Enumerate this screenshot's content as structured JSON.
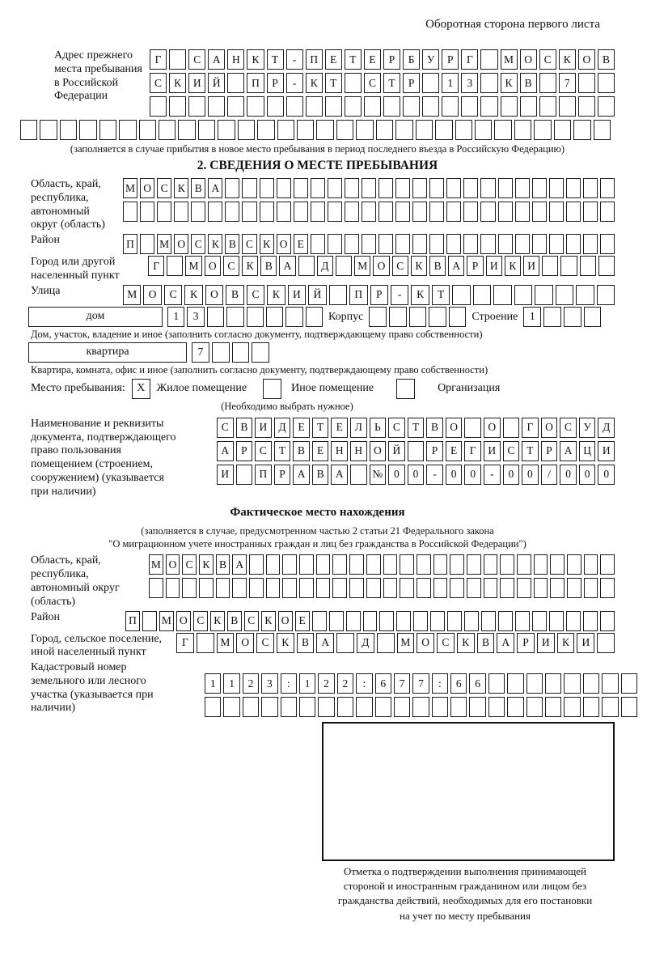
{
  "page": {
    "header_note": "Оборотная сторона первого листа"
  },
  "prev_address": {
    "label": "Адрес прежнего места пребывания в Российской Федерации",
    "row1": {
      "chars": "Г САНКТ-ПЕТЕРБУРГ МОСКОВ",
      "count": 24
    },
    "row2": {
      "chars": "СКИЙ ПР-КТ СТР 13 КВ 7",
      "count": 24
    },
    "row3": {
      "chars": "",
      "count": 24
    },
    "row4": {
      "chars": "",
      "count": 30
    },
    "note": "(заполняется в случае прибытия в новое место пребывания в период последнего въезда в Российскую Федерацию)"
  },
  "section2": {
    "title": "2. СВЕДЕНИЯ О МЕСТЕ ПРЕБЫВАНИЯ",
    "region": {
      "label": "Область, край, республика, автономный округ (область)",
      "row1": {
        "chars": "МОСКВА",
        "count": 29
      },
      "row2": {
        "chars": "",
        "count": 29
      }
    },
    "district": {
      "label": "Район",
      "row1": {
        "chars": "П МОСКВСКОЕ",
        "count": 29
      }
    },
    "city": {
      "label": "Город или другой населенный пункт",
      "row1": {
        "chars": "Г МОСКВА Д МОСКВАРИКИ",
        "count": 25
      }
    },
    "street": {
      "label": "Улица",
      "row1": {
        "chars": "МОСКОВСКИЙ ПР-КТ",
        "count": 24
      }
    },
    "house": {
      "label": "дом",
      "row": {
        "chars": "13",
        "count": 8
      },
      "korpus_label": "Корпус",
      "korpus_row": {
        "chars": "",
        "count": 5
      },
      "stroenie_label": "Строение",
      "stroenie_row": {
        "chars": "1",
        "count": 4
      },
      "note": "Дом, участок, владение и иное (заполнить согласно документу, подтверждающему право собственности)"
    },
    "apartment": {
      "label": "квартира",
      "row": {
        "chars": "7",
        "count": 4
      },
      "note": "Квартира, комната, офис и иное (заполнить согласно документу, подтверждающему право собственности)"
    },
    "stay_type": {
      "label": "Место пребывания:",
      "options": [
        {
          "label": "Жилое помещение",
          "mark": "X"
        },
        {
          "label": "Иное помещение",
          "mark": ""
        },
        {
          "label": "Организация",
          "mark": ""
        }
      ],
      "note": "(Необходимо выбрать нужное)"
    },
    "document": {
      "label": "Наименование и реквизиты документа, подтверждающего право пользования помещением (строением, сооружением) (указывается при наличии)",
      "row1": {
        "chars": "СВИДЕТЕЛЬСТВО О ГОСУД",
        "count": 21
      },
      "row2": {
        "chars": "АРСТВЕННОЙ РЕГИСТРАЦИ",
        "count": 21
      },
      "row3": {
        "chars": "И ПРАВА №00-00-00/000",
        "count": 21
      }
    }
  },
  "actual_location": {
    "title": "Фактическое место нахождения",
    "note_line1": "(заполняется в случае, предусмотренном частью 2 статьи 21 Федерального закона",
    "note_line2": "\"О миграционном учете иностранных граждан и лиц без гражданства в Российской Федерации\")",
    "region": {
      "label": "Область, край, республика, автономный округ (область)",
      "row1": {
        "chars": "МОСКВА",
        "count": 28
      },
      "row2": {
        "chars": "",
        "count": 28
      }
    },
    "district": {
      "label": "Район",
      "row1": {
        "chars": "П МОСКВСКОЕ",
        "count": 29
      }
    },
    "city": {
      "label": "Город, сельское поселение, иной населенный пункт",
      "row1": {
        "chars": "Г МОСКВА Д МОСКВАРИКИ",
        "count": 22
      }
    },
    "cadastre": {
      "label": "Кадастровый номер земельного или лесного участка (указывается при наличии)",
      "row1": {
        "chars": "1123:122:677:66",
        "count": 23
      },
      "row2": {
        "chars": "",
        "count": 23
      }
    }
  },
  "stamp": {
    "caption_lines": [
      "Отметка о подтверждении выполнения принимающей",
      "стороной и иностранным гражданином или лицом без",
      "гражданства действий, необходимых для его постановки",
      "на учет по месту пребывания"
    ]
  }
}
